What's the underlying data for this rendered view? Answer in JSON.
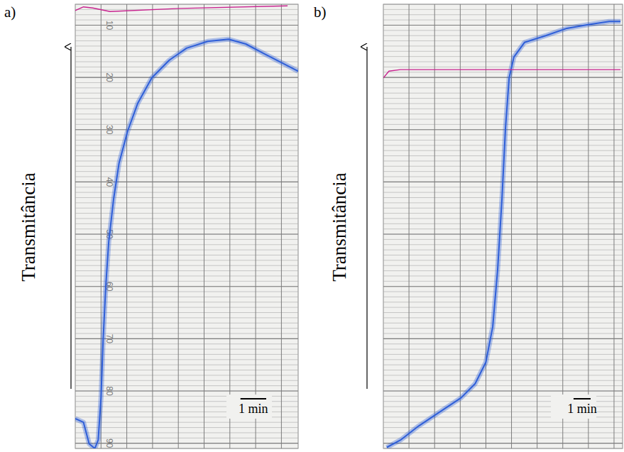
{
  "chart_data": [
    {
      "type": "line",
      "panel_label": "a)",
      "y_label": "Transmitância",
      "xlim": [
        0,
        8.65
      ],
      "ylim": [
        91,
        6
      ],
      "xticks": [
        1,
        2,
        3,
        4,
        5,
        6,
        7,
        8
      ],
      "yticks": [
        10,
        20,
        30,
        40,
        50,
        60,
        70,
        80,
        90
      ],
      "grid": true,
      "tick_labels": "y",
      "scale_bar": {
        "value": 1,
        "label": "1 min"
      },
      "series": [
        {
          "color": "#2f5fd8",
          "x": [
            0,
            0.32,
            0.54,
            0.76,
            0.89,
            1.0,
            1.08,
            1.19,
            1.3,
            1.49,
            1.7,
            2.03,
            2.43,
            2.97,
            3.65,
            4.32,
            5.14,
            5.95,
            6.62,
            7.3,
            7.97,
            8.65
          ],
          "values": [
            85.3,
            86.0,
            90.1,
            91.0,
            89.4,
            81.3,
            70.4,
            59.5,
            51.4,
            43.2,
            36.4,
            30.3,
            24.9,
            20.1,
            16.7,
            14.4,
            13.1,
            12.7,
            13.6,
            15.4,
            17.1,
            18.8
          ]
        },
        {
          "color": "#c8238f",
          "x": [
            0,
            0.32,
            0.68,
            1.35,
            4.05,
            8.24
          ],
          "values": [
            7.2,
            6.5,
            6.7,
            7.4,
            6.8,
            6.3
          ]
        }
      ]
    },
    {
      "type": "line",
      "panel_label": "b)",
      "y_label": "Transmitância",
      "xlim": [
        0,
        14
      ],
      "ylim": [
        91,
        6
      ],
      "xticks": [
        1.5,
        3,
        4.5,
        6,
        7.5,
        9,
        10.5,
        12,
        13.5
      ],
      "yticks": [
        10,
        20,
        30,
        40,
        50,
        60,
        70,
        80,
        90
      ],
      "grid": true,
      "tick_labels": false,
      "scale_bar": {
        "value": 1,
        "label": "1 min"
      },
      "series": [
        {
          "color": "#2f5fd8",
          "x": [
            0.2,
            1.0,
            2.07,
            3.31,
            4.55,
            5.37,
            6.0,
            6.4,
            6.69,
            6.94,
            7.15,
            7.36,
            7.64,
            8.26,
            9.5,
            10.74,
            11.98,
            13.22,
            13.88
          ],
          "values": [
            90.8,
            89.4,
            86.7,
            84.0,
            81.3,
            78.6,
            74.5,
            67.7,
            56.8,
            43.2,
            29.6,
            20.1,
            16.1,
            13.3,
            12.0,
            10.6,
            9.9,
            9.3,
            9.3
          ]
        },
        {
          "color": "#c8238f",
          "x": [
            0,
            0.33,
            1.0,
            13.88
          ],
          "values": [
            20.1,
            18.8,
            18.5,
            18.5
          ]
        }
      ]
    }
  ]
}
